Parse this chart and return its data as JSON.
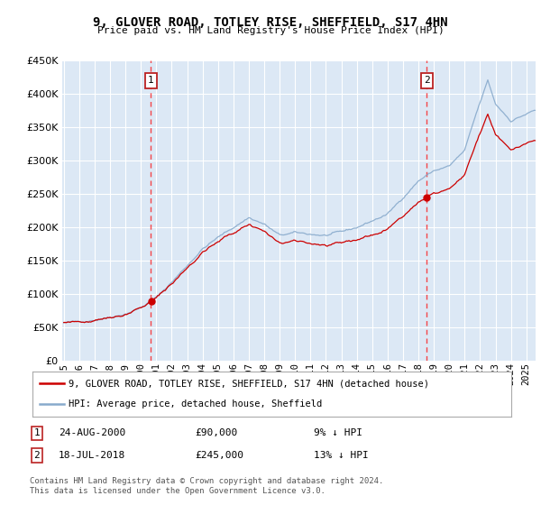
{
  "title": "9, GLOVER ROAD, TOTLEY RISE, SHEFFIELD, S17 4HN",
  "subtitle": "Price paid vs. HM Land Registry's House Price Index (HPI)",
  "legend_label_red": "9, GLOVER ROAD, TOTLEY RISE, SHEFFIELD, S17 4HN (detached house)",
  "legend_label_blue": "HPI: Average price, detached house, Sheffield",
  "footnote": "Contains HM Land Registry data © Crown copyright and database right 2024.\nThis data is licensed under the Open Government Licence v3.0.",
  "sale1_date": "24-AUG-2000",
  "sale1_price": "£90,000",
  "sale1_note": "9% ↓ HPI",
  "sale2_date": "18-JUL-2018",
  "sale2_price": "£245,000",
  "sale2_note": "13% ↓ HPI",
  "sale1_year": 2000.65,
  "sale1_value": 90000,
  "sale2_year": 2018.54,
  "sale2_value": 245000,
  "ylim": [
    0,
    450000
  ],
  "xlim_start": 1994.9,
  "xlim_end": 2025.6,
  "plot_bg_color": "#dce8f5",
  "red_color": "#cc0000",
  "blue_color": "#88aacc",
  "sale_marker_color": "#cc0000",
  "hpi_breakpoints_years": [
    1995.0,
    1996.0,
    1997.0,
    1998.0,
    1999.0,
    2000.0,
    2001.0,
    2002.0,
    2003.0,
    2004.0,
    2005.0,
    2006.0,
    2007.0,
    2008.0,
    2009.0,
    2010.0,
    2011.0,
    2012.0,
    2013.0,
    2014.0,
    2015.0,
    2016.0,
    2017.0,
    2018.0,
    2019.0,
    2020.0,
    2021.0,
    2021.75,
    2022.5,
    2023.0,
    2024.0,
    2025.5
  ],
  "hpi_breakpoints_vals": [
    57000,
    59000,
    62000,
    66000,
    71000,
    80000,
    95000,
    118000,
    143000,
    168000,
    185000,
    200000,
    215000,
    205000,
    188000,
    192000,
    190000,
    188000,
    193000,
    200000,
    210000,
    220000,
    245000,
    270000,
    285000,
    292000,
    315000,
    370000,
    420000,
    385000,
    360000,
    375000
  ],
  "noise_seed_hpi": 42,
  "noise_seed_prop": 10,
  "noise_hpi_std": 3500,
  "noise_prop_std": 2000
}
